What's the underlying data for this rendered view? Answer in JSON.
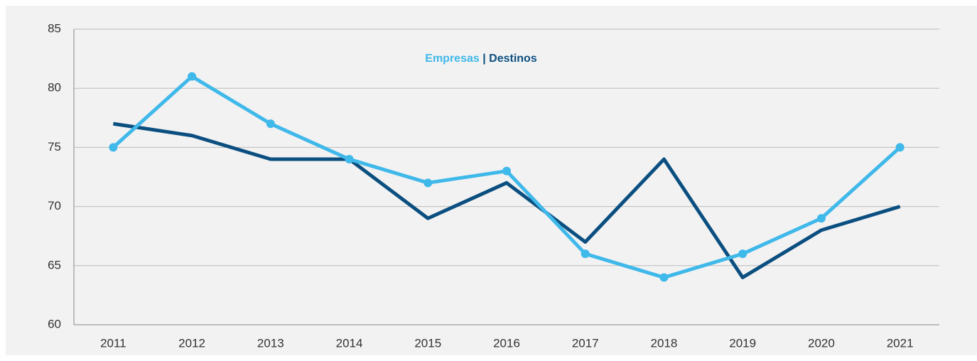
{
  "chart_data": {
    "type": "line",
    "categories": [
      "2011",
      "2012",
      "2013",
      "2014",
      "2015",
      "2016",
      "2017",
      "2018",
      "2019",
      "2020",
      "2021"
    ],
    "series": [
      {
        "name": "Empresas",
        "color": "#3fb8ea",
        "markers": true,
        "values": [
          75,
          81,
          77,
          74,
          72,
          73,
          66,
          64,
          66,
          69,
          75
        ]
      },
      {
        "name": "Destinos",
        "color": "#0b4f80",
        "markers": false,
        "values": [
          77,
          76,
          74,
          74,
          69,
          72,
          67,
          74,
          64,
          68,
          70
        ]
      }
    ],
    "legend_separator": "|",
    "ylim": [
      60,
      85
    ],
    "yticks": [
      60,
      65,
      70,
      75,
      80,
      85
    ],
    "grid": true
  }
}
